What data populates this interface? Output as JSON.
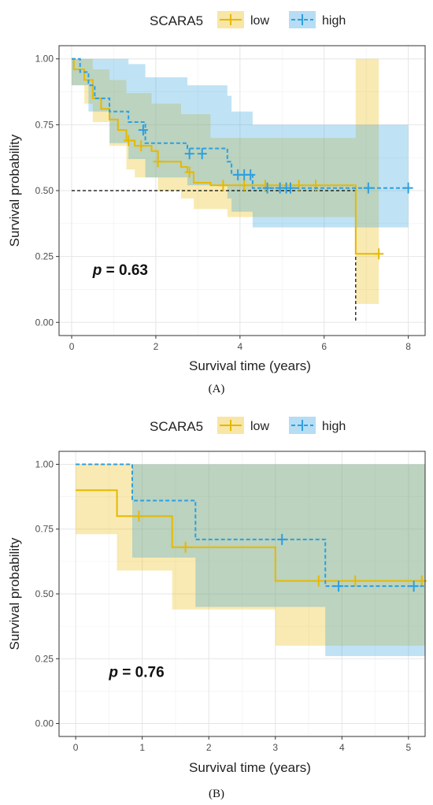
{
  "chart_data": [
    {
      "type": "line",
      "panel_label": "(A)",
      "legend": {
        "title": "SCARA5",
        "entries": [
          {
            "name": "low",
            "color": "#E7B800"
          },
          {
            "name": "high",
            "color": "#2E9FDF"
          }
        ],
        "position": "top"
      },
      "xlabel": "Survival time (years)",
      "ylabel": "Survival probability",
      "xlim": [
        -0.3,
        8.4
      ],
      "ylim": [
        -0.05,
        1.05
      ],
      "xticks": [
        0,
        2,
        4,
        6,
        8
      ],
      "xtick_labels": [
        "0",
        "2",
        "4",
        "6",
        "8"
      ],
      "yticks": [
        0,
        0.25,
        0.5,
        0.75,
        1.0
      ],
      "ytick_labels": [
        "0.00",
        "0.25",
        "0.50",
        "0.75",
        "1.00"
      ],
      "grid": true,
      "annotation": {
        "prefix": "p",
        "text": " = 0.63",
        "x": 0.5,
        "y": 0.18
      },
      "median_line": {
        "y": 0.5,
        "x_end": 6.75
      },
      "series": [
        {
          "name": "low",
          "color": "#E7B800",
          "dashed": false,
          "steps": [
            [
              0,
              1.0
            ],
            [
              0.05,
              0.96
            ],
            [
              0.3,
              0.92
            ],
            [
              0.5,
              0.85
            ],
            [
              0.7,
              0.81
            ],
            [
              0.9,
              0.77
            ],
            [
              1.1,
              0.73
            ],
            [
              1.3,
              0.69
            ],
            [
              1.5,
              0.67
            ],
            [
              1.9,
              0.65
            ],
            [
              2.05,
              0.61
            ],
            [
              2.6,
              0.59
            ],
            [
              2.75,
              0.57
            ],
            [
              2.9,
              0.53
            ],
            [
              3.3,
              0.52
            ],
            [
              6.75,
              0.52
            ],
            [
              6.75,
              0.26
            ],
            [
              7.3,
              0.26
            ]
          ],
          "censor": [
            [
              1.35,
              0.69
            ],
            [
              1.65,
              0.67
            ],
            [
              2.05,
              0.61
            ],
            [
              2.8,
              0.57
            ],
            [
              3.6,
              0.52
            ],
            [
              4.1,
              0.52
            ],
            [
              4.6,
              0.52
            ],
            [
              5.4,
              0.52
            ],
            [
              5.8,
              0.52
            ],
            [
              7.3,
              0.26
            ]
          ],
          "ci_upper": [
            [
              0,
              1.0
            ],
            [
              0.3,
              1.0
            ],
            [
              0.5,
              0.96
            ],
            [
              0.9,
              0.92
            ],
            [
              1.3,
              0.87
            ],
            [
              1.9,
              0.83
            ],
            [
              2.6,
              0.79
            ],
            [
              3.3,
              0.7
            ],
            [
              6.75,
              0.7
            ],
            [
              6.75,
              1.0
            ],
            [
              7.3,
              1.0
            ]
          ],
          "ci_lower": [
            [
              0,
              0.9
            ],
            [
              0.3,
              0.83
            ],
            [
              0.5,
              0.76
            ],
            [
              0.9,
              0.67
            ],
            [
              1.3,
              0.58
            ],
            [
              1.5,
              0.55
            ],
            [
              2.05,
              0.5
            ],
            [
              2.6,
              0.47
            ],
            [
              2.9,
              0.43
            ],
            [
              3.7,
              0.4
            ],
            [
              4.3,
              0.4
            ],
            [
              6.75,
              0.4
            ],
            [
              6.75,
              0.07
            ],
            [
              7.3,
              0.07
            ]
          ]
        },
        {
          "name": "high",
          "color": "#2E9FDF",
          "dashed": true,
          "steps": [
            [
              0,
              1.0
            ],
            [
              0.2,
              0.95
            ],
            [
              0.4,
              0.9
            ],
            [
              0.55,
              0.85
            ],
            [
              0.9,
              0.8
            ],
            [
              1.35,
              0.76
            ],
            [
              1.75,
              0.68
            ],
            [
              2.75,
              0.66
            ],
            [
              3.7,
              0.61
            ],
            [
              3.8,
              0.56
            ],
            [
              4.3,
              0.51
            ],
            [
              8.0,
              0.51
            ]
          ],
          "censor": [
            [
              1.7,
              0.73
            ],
            [
              2.8,
              0.64
            ],
            [
              3.1,
              0.64
            ],
            [
              3.95,
              0.56
            ],
            [
              4.1,
              0.56
            ],
            [
              4.25,
              0.56
            ],
            [
              4.65,
              0.51
            ],
            [
              4.95,
              0.51
            ],
            [
              5.1,
              0.51
            ],
            [
              5.2,
              0.51
            ],
            [
              7.05,
              0.51
            ],
            [
              8.0,
              0.51
            ]
          ],
          "ci_upper": [
            [
              0,
              1.0
            ],
            [
              0.55,
              1.0
            ],
            [
              1.35,
              0.98
            ],
            [
              1.75,
              0.93
            ],
            [
              2.75,
              0.9
            ],
            [
              3.7,
              0.86
            ],
            [
              3.8,
              0.8
            ],
            [
              4.3,
              0.75
            ],
            [
              8.0,
              0.75
            ]
          ],
          "ci_lower": [
            [
              0,
              0.9
            ],
            [
              0.4,
              0.8
            ],
            [
              0.9,
              0.68
            ],
            [
              1.35,
              0.62
            ],
            [
              1.75,
              0.55
            ],
            [
              2.75,
              0.52
            ],
            [
              3.7,
              0.47
            ],
            [
              3.8,
              0.42
            ],
            [
              4.3,
              0.36
            ],
            [
              8.0,
              0.36
            ]
          ]
        }
      ]
    },
    {
      "type": "line",
      "panel_label": "(B)",
      "legend": {
        "title": "SCARA5",
        "entries": [
          {
            "name": "low",
            "color": "#E7B800"
          },
          {
            "name": "high",
            "color": "#2E9FDF"
          }
        ],
        "position": "top"
      },
      "xlabel": "Survival time (years)",
      "ylabel": "Survival probability",
      "xlim": [
        -0.25,
        5.25
      ],
      "ylim": [
        -0.05,
        1.05
      ],
      "xticks": [
        0,
        1,
        2,
        3,
        4,
        5
      ],
      "xtick_labels": [
        "0",
        "1",
        "2",
        "3",
        "4",
        "5"
      ],
      "yticks": [
        0,
        0.25,
        0.5,
        0.75,
        1.0
      ],
      "ytick_labels": [
        "0.00",
        "0.25",
        "0.50",
        "0.75",
        "1.00"
      ],
      "grid": true,
      "annotation": {
        "prefix": "p",
        "text": " = 0.76",
        "x": 0.5,
        "y": 0.18
      },
      "series": [
        {
          "name": "low",
          "color": "#E7B800",
          "dashed": false,
          "steps": [
            [
              0,
              0.9
            ],
            [
              0.62,
              0.9
            ],
            [
              0.62,
              0.8
            ],
            [
              1.45,
              0.8
            ],
            [
              1.45,
              0.68
            ],
            [
              3.0,
              0.68
            ],
            [
              3.0,
              0.55
            ],
            [
              5.25,
              0.55
            ]
          ],
          "censor": [
            [
              0.95,
              0.8
            ],
            [
              1.65,
              0.68
            ],
            [
              3.65,
              0.55
            ],
            [
              4.2,
              0.55
            ],
            [
              5.2,
              0.55
            ]
          ],
          "ci_upper": [
            [
              0,
              1.0
            ],
            [
              5.25,
              1.0
            ]
          ],
          "ci_lower": [
            [
              0,
              0.73
            ],
            [
              0.62,
              0.73
            ],
            [
              0.62,
              0.59
            ],
            [
              1.45,
              0.59
            ],
            [
              1.45,
              0.44
            ],
            [
              3.0,
              0.44
            ],
            [
              3.0,
              0.3
            ],
            [
              5.25,
              0.3
            ]
          ]
        },
        {
          "name": "high",
          "color": "#2E9FDF",
          "dashed": true,
          "steps": [
            [
              0,
              1.0
            ],
            [
              0.85,
              1.0
            ],
            [
              0.85,
              0.86
            ],
            [
              1.8,
              0.86
            ],
            [
              1.8,
              0.71
            ],
            [
              3.75,
              0.71
            ],
            [
              3.75,
              0.53
            ],
            [
              5.25,
              0.53
            ]
          ],
          "censor": [
            [
              3.1,
              0.71
            ],
            [
              3.95,
              0.53
            ],
            [
              5.08,
              0.53
            ]
          ],
          "ci_upper": [
            [
              0,
              1.0
            ],
            [
              5.25,
              1.0
            ]
          ],
          "ci_lower": [
            [
              0.85,
              1.0
            ],
            [
              0.85,
              0.64
            ],
            [
              1.8,
              0.64
            ],
            [
              1.8,
              0.45
            ],
            [
              3.75,
              0.45
            ],
            [
              3.75,
              0.26
            ],
            [
              5.25,
              0.26
            ]
          ]
        }
      ]
    }
  ]
}
